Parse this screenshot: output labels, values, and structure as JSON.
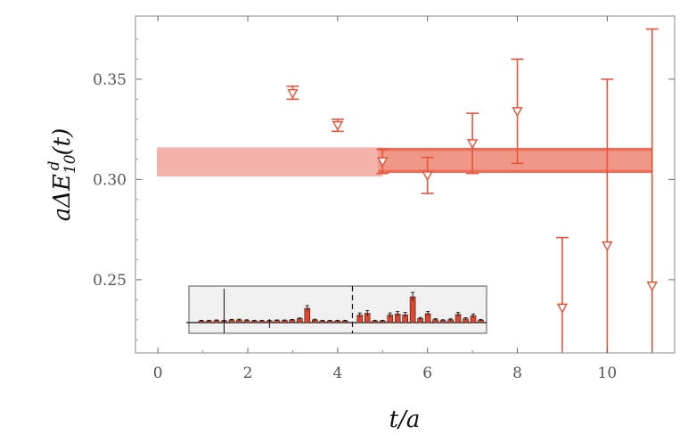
{
  "chart_data": {
    "type": "scatter",
    "title": "",
    "xlabel": "t/a",
    "ylabel": "aΔE",
    "ylabel_sup": "d",
    "ylabel_sub": "10",
    "ylabel_tail": "(t)",
    "xlim": [
      -0.5,
      11.5
    ],
    "ylim": [
      0.2135,
      0.3815
    ],
    "x_ticks": [
      0,
      2,
      4,
      6,
      8,
      10
    ],
    "y_ticks": [
      0.25,
      0.3,
      0.35
    ],
    "y_tick_labels": [
      "0.25",
      "0.30",
      "0.35"
    ],
    "grid": false,
    "colors": {
      "points": "#e8533a",
      "wide_band": "#f4b3aa",
      "fit_band": "#ef9888",
      "fit_line": "#ea6f5a",
      "inset_bg": "#f0f0f0",
      "inset_bar": "#e0452c"
    },
    "series": [
      {
        "marker": "triangle-down",
        "points": [
          {
            "x": 3,
            "y": 0.343,
            "err_lo": 0.003,
            "err_hi": 0.0035
          },
          {
            "x": 4,
            "y": 0.327,
            "err_lo": 0.003,
            "err_hi": 0.003
          },
          {
            "x": 5,
            "y": 0.309,
            "err_lo": 0.006,
            "err_hi": 0.006
          },
          {
            "x": 6,
            "y": 0.302,
            "err_lo": 0.009,
            "err_hi": 0.009
          },
          {
            "x": 7,
            "y": 0.318,
            "err_lo": 0.015,
            "err_hi": 0.015
          },
          {
            "x": 8,
            "y": 0.334,
            "err_lo": 0.026,
            "err_hi": 0.026
          },
          {
            "x": 9,
            "y": 0.236,
            "err_lo": 0.08,
            "err_hi": 0.035
          },
          {
            "x": 10,
            "y": 0.267,
            "err_lo": 0.11,
            "err_hi": 0.083
          },
          {
            "x": 11,
            "y": 0.247,
            "err_lo": 0.1,
            "err_hi": 0.128
          }
        ]
      }
    ],
    "bands": [
      {
        "name": "wide",
        "x_from": -0.5,
        "x_to": 5.0,
        "y_low": 0.3015,
        "y_high": 0.316
      },
      {
        "name": "fit",
        "x_from": 4.9,
        "x_to": 11.0,
        "y_low": 0.304,
        "y_high": 0.315
      }
    ],
    "inset": {
      "type": "bar",
      "dashed_divider_after": 19,
      "values": [
        1,
        1,
        1.2,
        1,
        1.5,
        1.5,
        1.2,
        1,
        1,
        1,
        1.2,
        1.2,
        1.5,
        2.2,
        8,
        1.5,
        1,
        1,
        1,
        1,
        4.2,
        5.2,
        1,
        1,
        4.2,
        4.8,
        4.4,
        14.5,
        2.3,
        5,
        1.7,
        1.2,
        1.6,
        4.6,
        2.1,
        3.8,
        1.4
      ],
      "errors": [
        0.3,
        0.3,
        0.3,
        0.3,
        0.3,
        0.4,
        0.4,
        0.3,
        0.3,
        0.3,
        0.3,
        0.3,
        0.3,
        0.4,
        1.5,
        0.4,
        0.3,
        0.3,
        0.3,
        0.3,
        1.2,
        1.5,
        0.3,
        0.3,
        1.2,
        1.4,
        1.3,
        2.4,
        0.6,
        1.2,
        0.5,
        0.4,
        0.5,
        1.1,
        0.6,
        1.0,
        0.4
      ],
      "outlier_bar": {
        "index": 3,
        "up": 14,
        "down": 6
      },
      "neg_bar": {
        "index": 9,
        "value": -1.2,
        "error": 1.5
      }
    }
  }
}
